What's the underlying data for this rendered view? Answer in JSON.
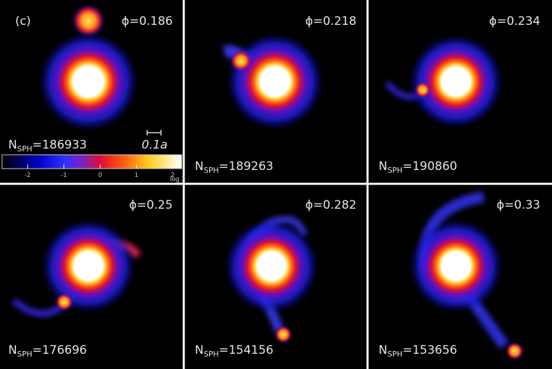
{
  "figure_label": "(c)",
  "n_symbol": "N",
  "n_subscript": "SPH",
  "panels": [
    {
      "phase": "ϕ=0.186",
      "count": "=186933"
    },
    {
      "phase": "ϕ=0.218",
      "count": "=189263"
    },
    {
      "phase": "ϕ=0.234",
      "count": "=190860"
    },
    {
      "phase": "ϕ=0.25",
      "count": "=176696"
    },
    {
      "phase": "ϕ=0.282",
      "count": "=154156"
    },
    {
      "phase": "ϕ=0.33",
      "count": "=153656"
    }
  ],
  "scale_bar": "0.1a",
  "colorbar": {
    "ticks": [
      "-2",
      "-1",
      "0",
      "1",
      "2"
    ],
    "label": "log Σ"
  }
}
